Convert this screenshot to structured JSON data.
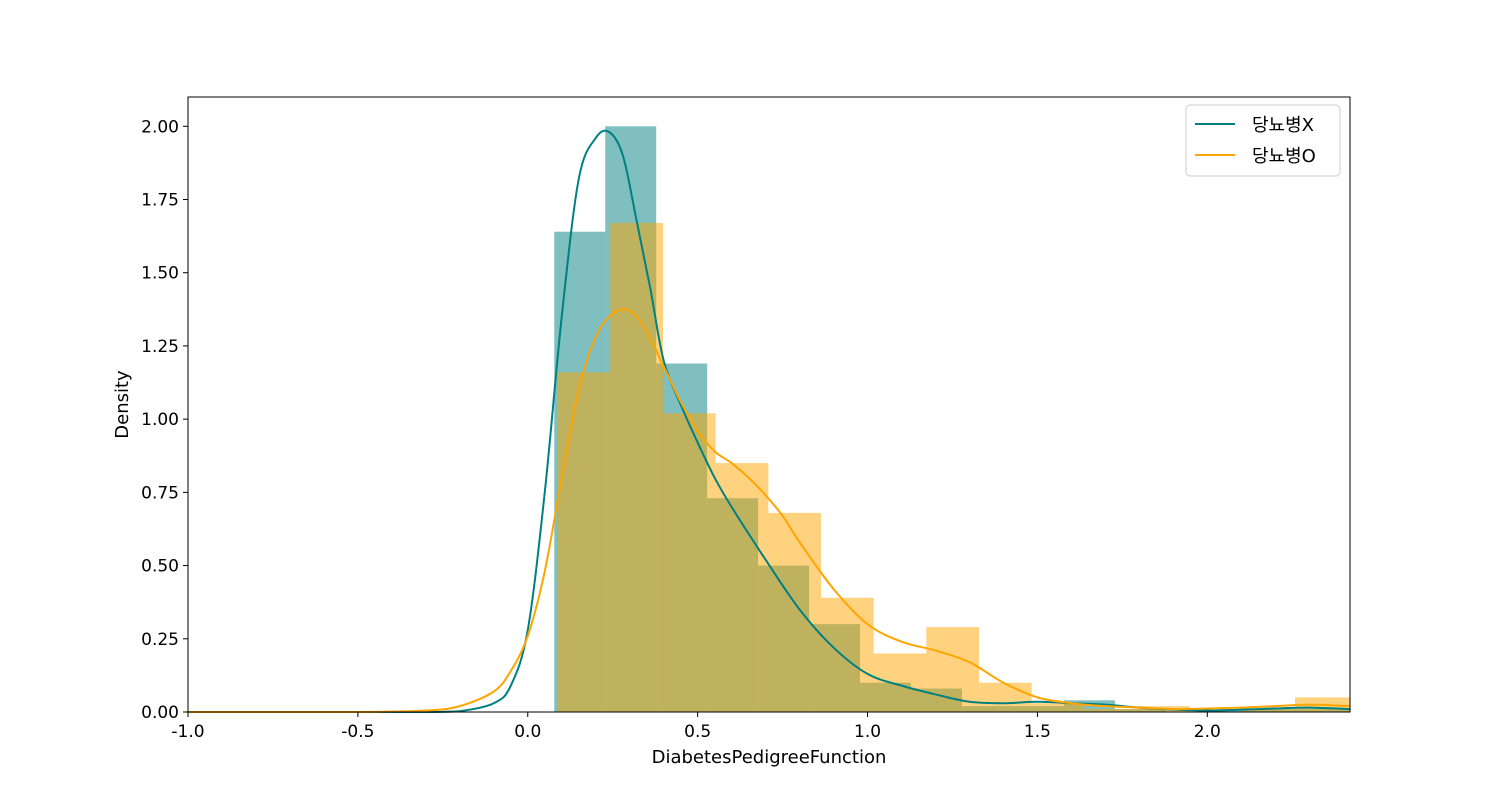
{
  "chart_data": {
    "type": "histogram",
    "xlabel": "DiabetesPedigreeFunction",
    "ylabel": "Density",
    "xlim": [
      -1.0,
      2.42
    ],
    "ylim": [
      0,
      2.1
    ],
    "x_ticks": [
      "-1.0",
      "-0.5",
      "0.0",
      "0.5",
      "1.0",
      "1.5",
      "2.0"
    ],
    "y_ticks": [
      "0.00",
      "0.25",
      "0.50",
      "0.75",
      "1.00",
      "1.25",
      "1.50",
      "1.75",
      "2.00"
    ],
    "grid": false,
    "legend_position": "top-right",
    "series": [
      {
        "name": "당뇨병X",
        "color": "#008080",
        "bins": [
          {
            "x0": 0.078,
            "x1": 0.228,
            "density": 1.64
          },
          {
            "x0": 0.228,
            "x1": 0.378,
            "density": 2.0
          },
          {
            "x0": 0.378,
            "x1": 0.528,
            "density": 1.19
          },
          {
            "x0": 0.528,
            "x1": 0.678,
            "density": 0.73
          },
          {
            "x0": 0.678,
            "x1": 0.828,
            "density": 0.5
          },
          {
            "x0": 0.828,
            "x1": 0.978,
            "density": 0.3
          },
          {
            "x0": 0.978,
            "x1": 1.128,
            "density": 0.1
          },
          {
            "x0": 1.128,
            "x1": 1.278,
            "density": 0.08
          },
          {
            "x0": 1.278,
            "x1": 1.428,
            "density": 0.02
          },
          {
            "x0": 1.428,
            "x1": 1.578,
            "density": 0.02
          },
          {
            "x0": 1.578,
            "x1": 1.728,
            "density": 0.04
          },
          {
            "x0": 1.728,
            "x1": 1.878,
            "density": 0.01
          },
          {
            "x0": 1.878,
            "x1": 2.028,
            "density": 0.0
          },
          {
            "x0": 2.028,
            "x1": 2.178,
            "density": 0.01
          },
          {
            "x0": 2.178,
            "x1": 2.328,
            "density": 0.01
          },
          {
            "x0": 2.328,
            "x1": 2.42,
            "density": 0.01
          }
        ],
        "kde": {
          "x": [
            -1.0,
            -0.5,
            -0.3,
            -0.2,
            -0.1,
            -0.05,
            0.0,
            0.05,
            0.1,
            0.15,
            0.2,
            0.24,
            0.28,
            0.32,
            0.36,
            0.4,
            0.45,
            0.5,
            0.55,
            0.6,
            0.7,
            0.8,
            0.9,
            1.0,
            1.1,
            1.2,
            1.3,
            1.4,
            1.5,
            1.6,
            1.7,
            1.8,
            1.9,
            2.0,
            2.1,
            2.2,
            2.3,
            2.42
          ],
          "y": [
            0.0,
            0.0,
            0.0,
            0.003,
            0.03,
            0.09,
            0.28,
            0.75,
            1.35,
            1.82,
            1.96,
            1.98,
            1.9,
            1.68,
            1.45,
            1.2,
            1.05,
            0.92,
            0.8,
            0.7,
            0.52,
            0.35,
            0.22,
            0.13,
            0.09,
            0.06,
            0.035,
            0.03,
            0.035,
            0.03,
            0.025,
            0.015,
            0.008,
            0.005,
            0.008,
            0.012,
            0.015,
            0.01
          ]
        }
      },
      {
        "name": "당뇨병O",
        "color": "#ffa500",
        "bins": [
          {
            "x0": 0.088,
            "x1": 0.243,
            "density": 1.16
          },
          {
            "x0": 0.243,
            "x1": 0.398,
            "density": 1.67
          },
          {
            "x0": 0.398,
            "x1": 0.553,
            "density": 1.02
          },
          {
            "x0": 0.553,
            "x1": 0.708,
            "density": 0.85
          },
          {
            "x0": 0.708,
            "x1": 0.863,
            "density": 0.68
          },
          {
            "x0": 0.863,
            "x1": 1.018,
            "density": 0.39
          },
          {
            "x0": 1.018,
            "x1": 1.173,
            "density": 0.2
          },
          {
            "x0": 1.173,
            "x1": 1.328,
            "density": 0.29
          },
          {
            "x0": 1.328,
            "x1": 1.483,
            "density": 0.1
          },
          {
            "x0": 1.483,
            "x1": 1.638,
            "density": 0.03
          },
          {
            "x0": 1.638,
            "x1": 1.793,
            "density": 0.01
          },
          {
            "x0": 1.793,
            "x1": 1.948,
            "density": 0.02
          },
          {
            "x0": 1.948,
            "x1": 2.103,
            "density": 0.0
          },
          {
            "x0": 2.103,
            "x1": 2.258,
            "density": 0.01
          },
          {
            "x0": 2.258,
            "x1": 2.42,
            "density": 0.05
          }
        ],
        "kde": {
          "x": [
            -1.0,
            -0.5,
            -0.3,
            -0.2,
            -0.1,
            -0.05,
            0.0,
            0.05,
            0.1,
            0.15,
            0.2,
            0.25,
            0.3,
            0.35,
            0.4,
            0.45,
            0.5,
            0.55,
            0.6,
            0.65,
            0.7,
            0.75,
            0.8,
            0.9,
            1.0,
            1.1,
            1.2,
            1.3,
            1.4,
            1.5,
            1.6,
            1.7,
            1.8,
            1.9,
            2.0,
            2.1,
            2.2,
            2.3,
            2.42
          ],
          "y": [
            0.0,
            0.0,
            0.005,
            0.02,
            0.07,
            0.14,
            0.26,
            0.48,
            0.8,
            1.1,
            1.28,
            1.36,
            1.37,
            1.3,
            1.18,
            1.06,
            0.96,
            0.89,
            0.85,
            0.8,
            0.74,
            0.67,
            0.58,
            0.42,
            0.3,
            0.24,
            0.21,
            0.17,
            0.1,
            0.05,
            0.03,
            0.02,
            0.015,
            0.01,
            0.012,
            0.015,
            0.02,
            0.025,
            0.02
          ]
        }
      }
    ]
  }
}
